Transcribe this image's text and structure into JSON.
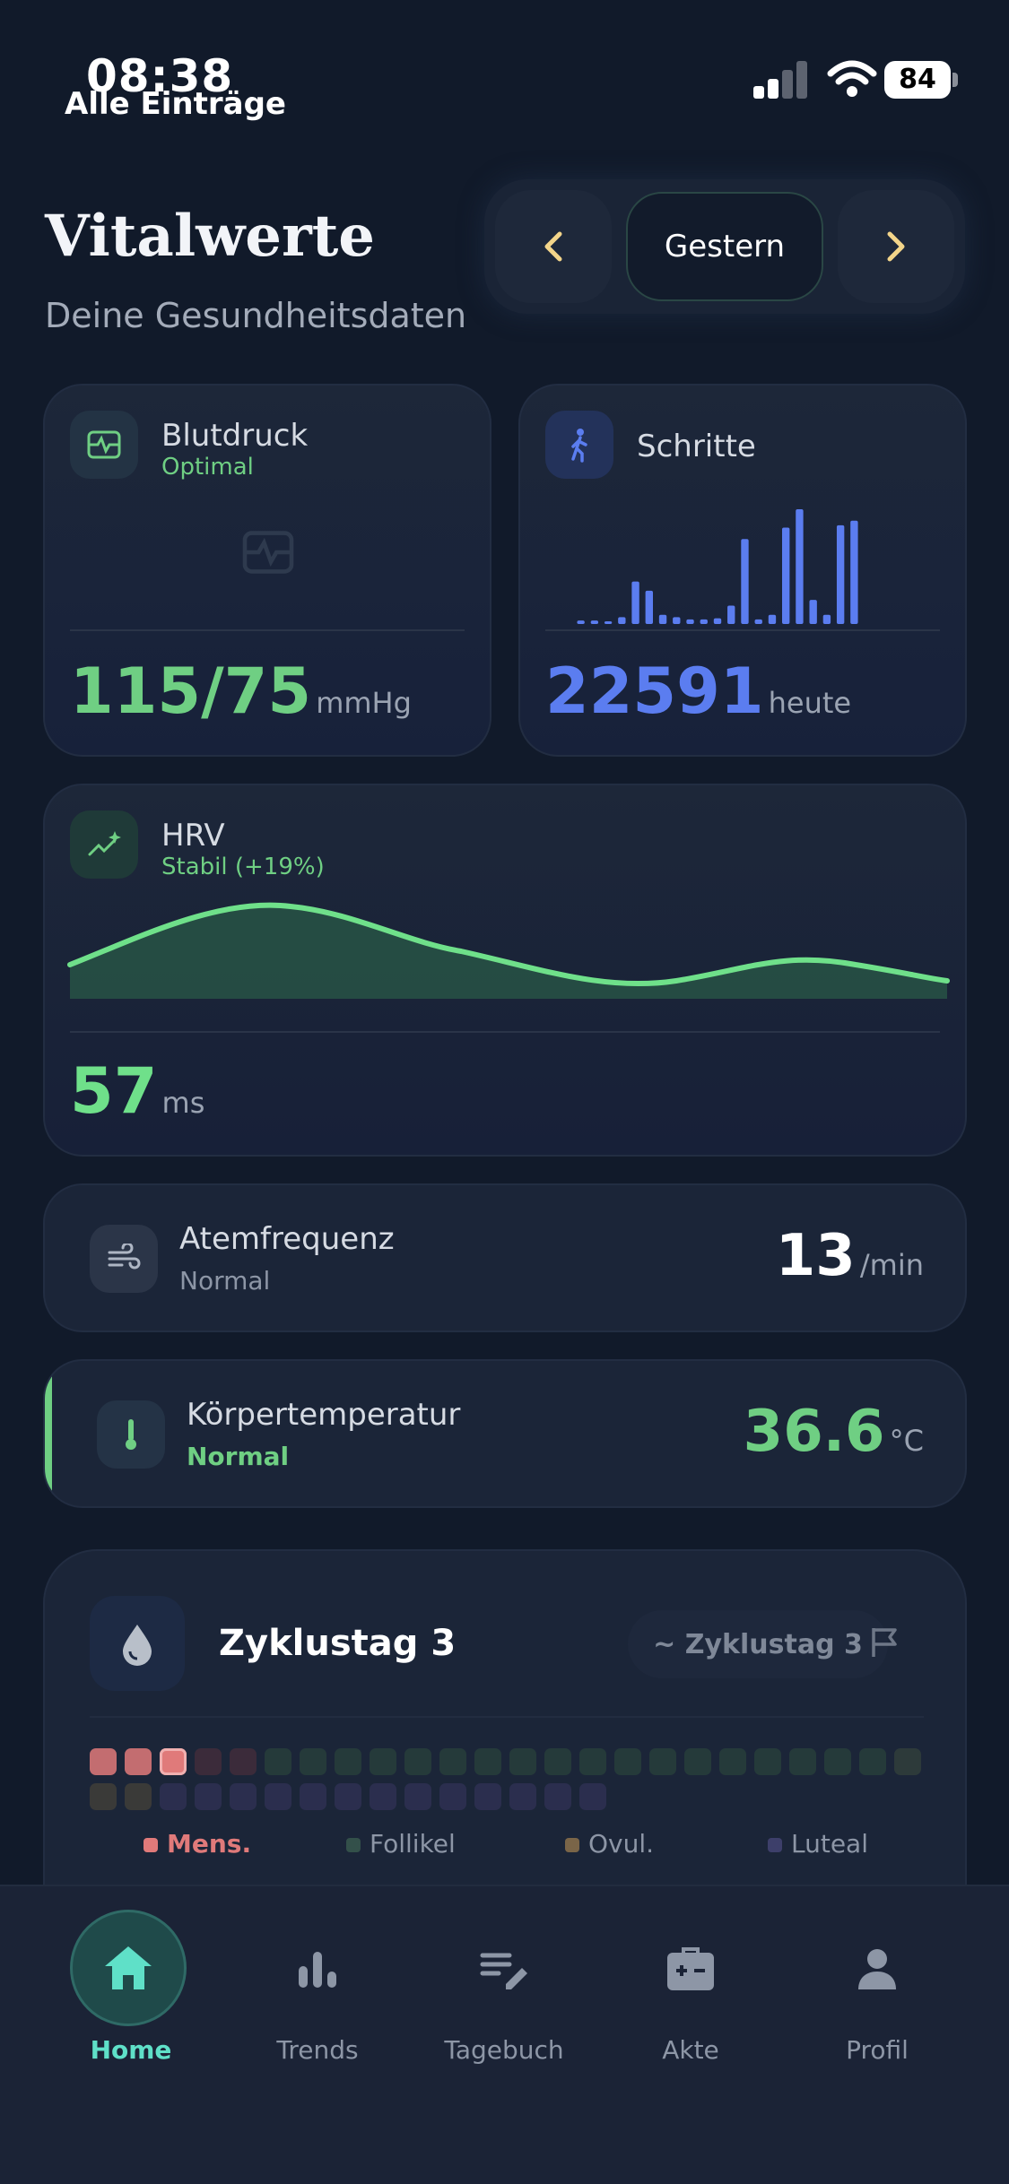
{
  "status_bar": {
    "time": "08:38",
    "back_label": "Alle Einträge",
    "battery": "84"
  },
  "header": {
    "title": "Vitalwerte",
    "subtitle": "Deine Gesundheitsdaten",
    "date_label": "Gestern"
  },
  "blood_pressure": {
    "label": "Blutdruck",
    "status": "Optimal",
    "value": "115/75",
    "unit": "mmHg"
  },
  "steps": {
    "label": "Schritte",
    "value": "22591",
    "unit": "heute",
    "bars": [
      0.03,
      0.03,
      0,
      0.06,
      0.37,
      0.29,
      0.08,
      0.06,
      0.04,
      0.04,
      0.05,
      0.16,
      0.74,
      0.04,
      0.08,
      0.84,
      1.0,
      0.21,
      0.08,
      0.86,
      0.9
    ]
  },
  "hrv": {
    "label": "HRV",
    "status": "Stabil (+19%)",
    "value": "57",
    "unit": "ms"
  },
  "respiration": {
    "label": "Atemfrequenz",
    "status": "Normal",
    "value": "13",
    "unit": "/min"
  },
  "temperature": {
    "label": "Körpertemperatur",
    "status": "Normal",
    "value": "36.6",
    "unit": "°C"
  },
  "cycle": {
    "title": "Zyklustag 3",
    "badge": "~ Zyklustag 3",
    "legend": [
      "Mens.",
      "Follikel",
      "Ovul.",
      "Luteal"
    ],
    "days": [
      "m",
      "m",
      "m-cur",
      "l",
      "l",
      "f",
      "f",
      "f",
      "f",
      "f",
      "f",
      "f",
      "f",
      "f",
      "f",
      "f",
      "f",
      "f",
      "f",
      "f",
      "f",
      "f",
      "f",
      "o",
      "o",
      "o",
      "p",
      "p",
      "p",
      "p",
      "p",
      "p",
      "p",
      "p",
      "p",
      "p",
      "p",
      "p",
      "p"
    ]
  },
  "tabs": [
    {
      "label": "Home",
      "icon": "home-icon",
      "active": true
    },
    {
      "label": "Trends",
      "icon": "bar-chart-icon"
    },
    {
      "label": "Tagebuch",
      "icon": "journal-edit-icon"
    },
    {
      "label": "Akte",
      "icon": "medical-kit-icon"
    },
    {
      "label": "Profil",
      "icon": "person-icon"
    }
  ],
  "colors": {
    "accent_teal": "#5fe0c8",
    "green": "#6fcf83",
    "blue": "#5b7df0",
    "mens": "#e07a7a",
    "follikel": "#33504a",
    "ovul": "#7a6548",
    "luteal": "#3d3f6a"
  }
}
